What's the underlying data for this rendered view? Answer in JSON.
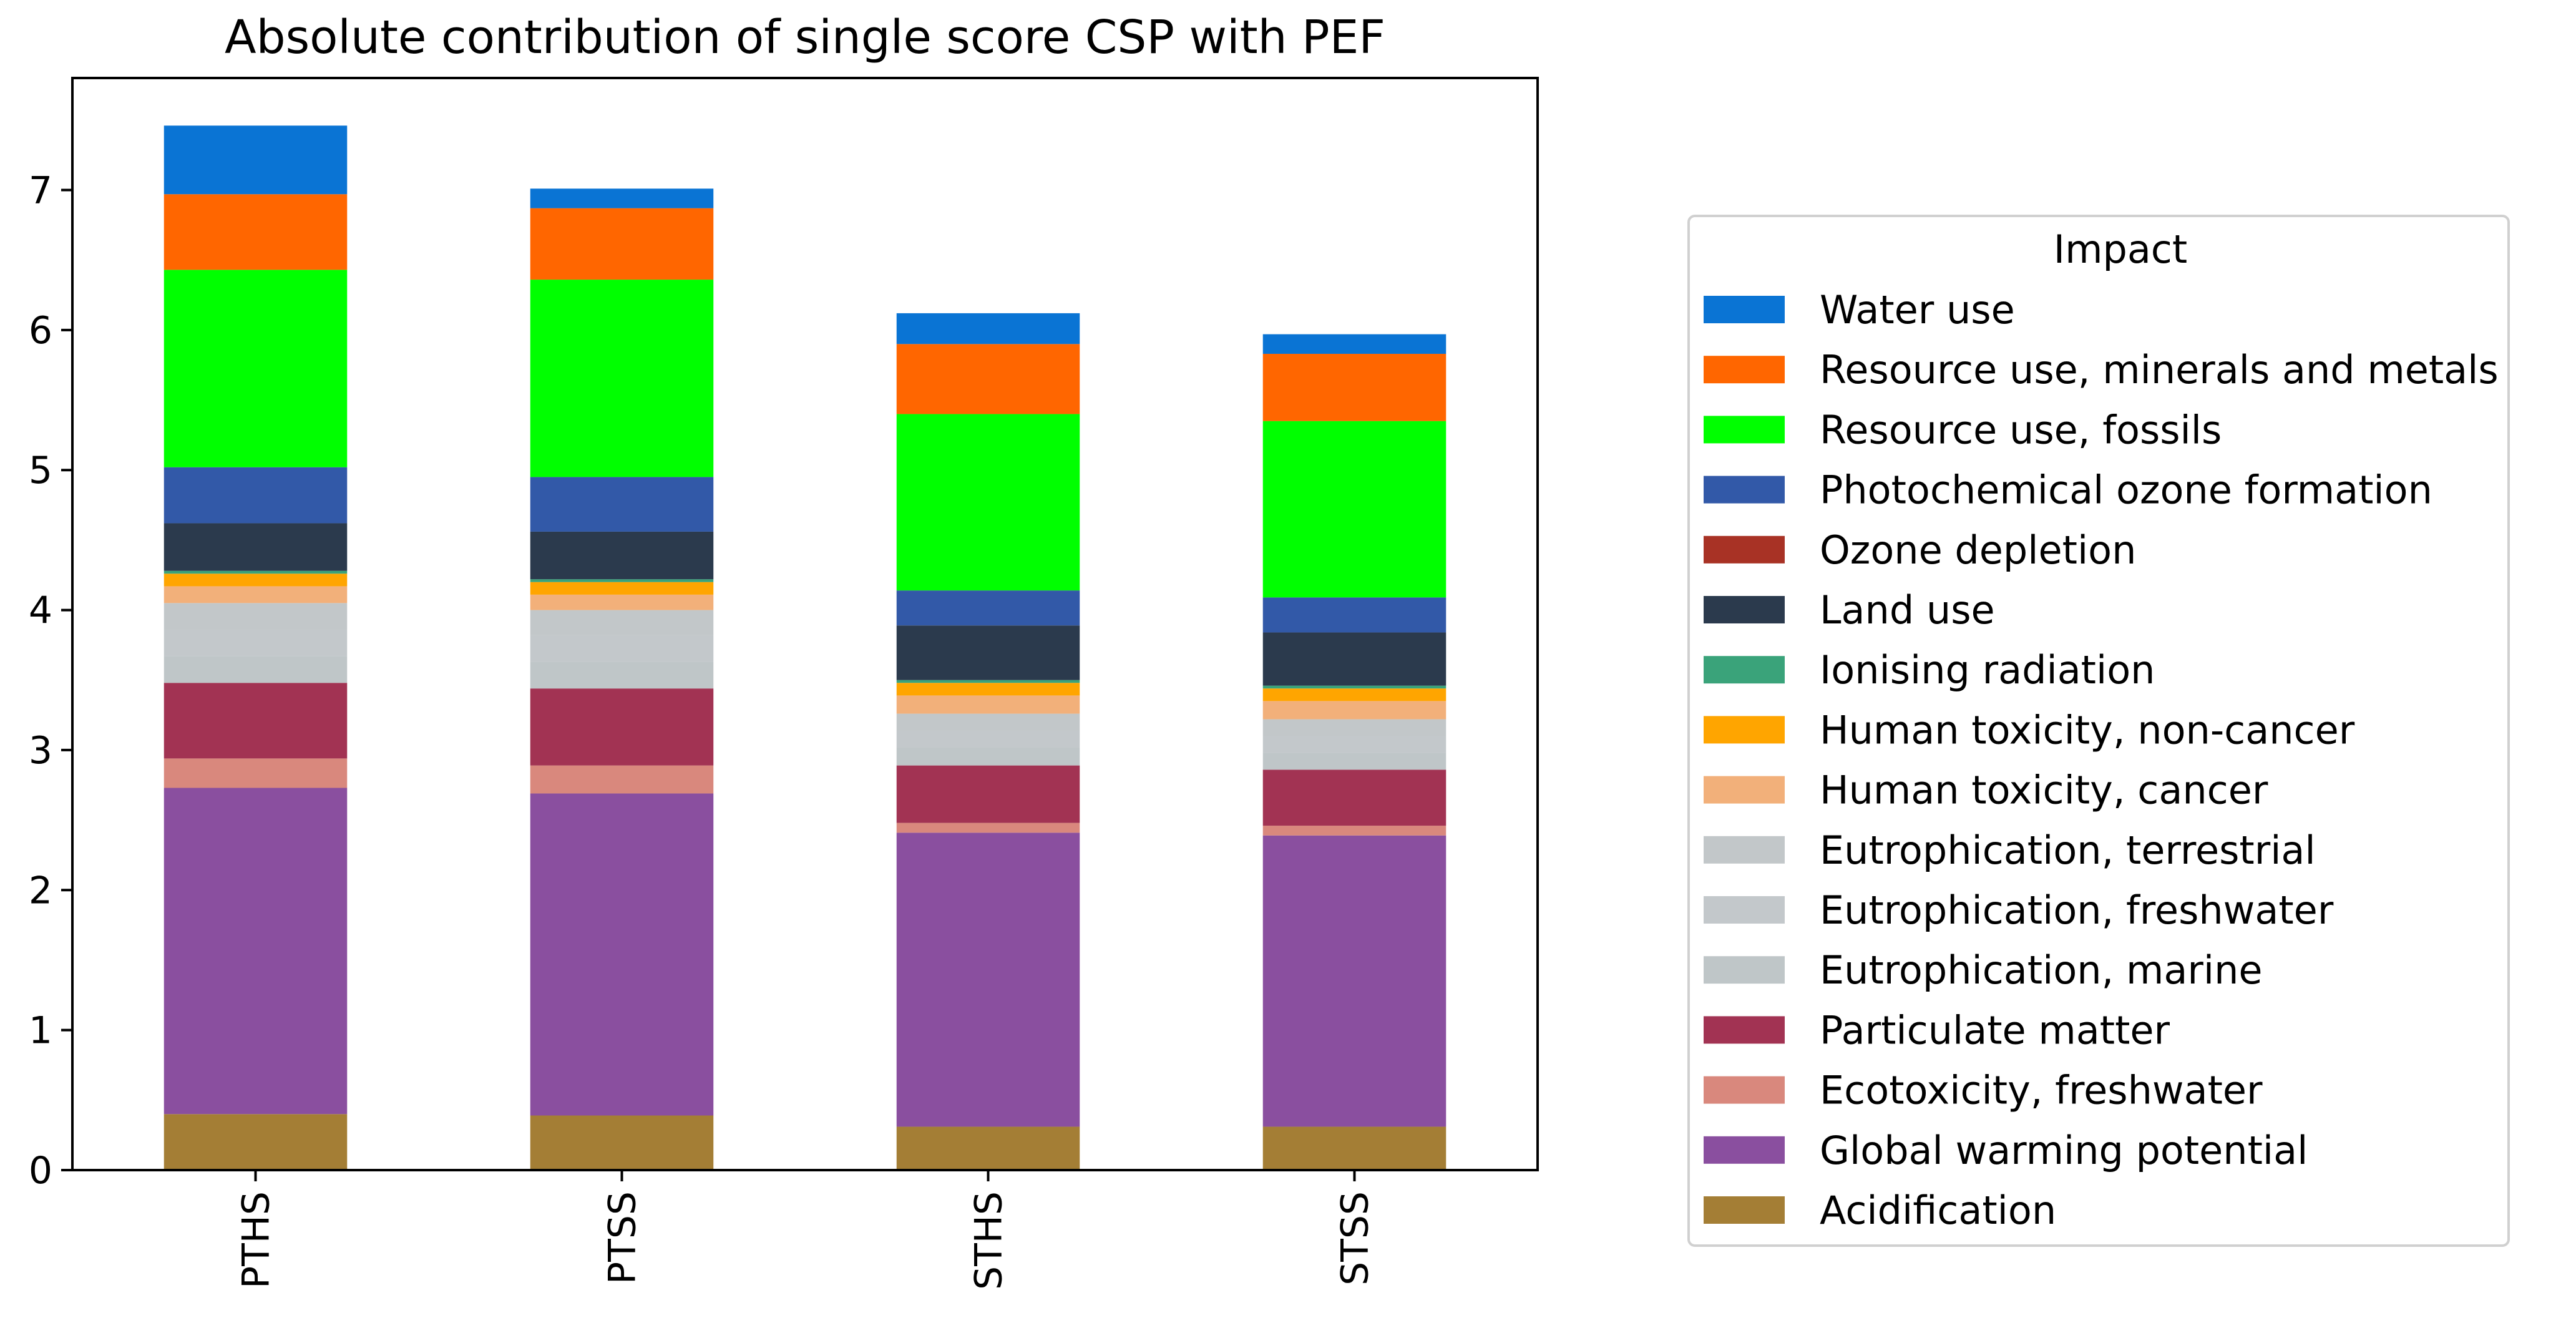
{
  "chart_data": {
    "type": "bar",
    "stacked": true,
    "title": "Absolute contribution of single score CSP with PEF",
    "xlabel": "",
    "ylabel": "",
    "ylim": [
      0,
      7.8
    ],
    "yticks": [
      0,
      1,
      2,
      3,
      4,
      5,
      6,
      7
    ],
    "categories": [
      "PTHS",
      "PTSS",
      "STHS",
      "STSS"
    ],
    "legend": {
      "title": "Impact",
      "position": "right"
    },
    "series": [
      {
        "name": "Acidification",
        "color": "#a47e35",
        "values": [
          0.4,
          0.39,
          0.31,
          0.31
        ]
      },
      {
        "name": "Global warming potential",
        "color": "#8a4f9f",
        "values": [
          2.33,
          2.3,
          2.1,
          2.08
        ]
      },
      {
        "name": "Ecotoxicity, freshwater",
        "color": "#d9887d",
        "values": [
          0.21,
          0.2,
          0.07,
          0.07
        ]
      },
      {
        "name": "Particulate matter",
        "color": "#a23353",
        "values": [
          0.54,
          0.55,
          0.41,
          0.4
        ]
      },
      {
        "name": "Eutrophication, marine",
        "color": "#bfc6c8",
        "values": [
          0.19,
          0.19,
          0.13,
          0.12
        ]
      },
      {
        "name": "Eutrophication, freshwater",
        "color": "#c3c8cb",
        "values": [
          0.19,
          0.19,
          0.12,
          0.12
        ]
      },
      {
        "name": "Eutrophication, terrestrial",
        "color": "#c2c7c9",
        "values": [
          0.19,
          0.18,
          0.12,
          0.12
        ]
      },
      {
        "name": "Human toxicity, cancer",
        "color": "#f2b07a",
        "values": [
          0.12,
          0.11,
          0.13,
          0.13
        ]
      },
      {
        "name": "Human toxicity, non-cancer",
        "color": "#ffa500",
        "values": [
          0.09,
          0.09,
          0.09,
          0.09
        ]
      },
      {
        "name": "Ionising radiation",
        "color": "#3aa37a",
        "values": [
          0.02,
          0.02,
          0.02,
          0.02
        ]
      },
      {
        "name": "Land use",
        "color": "#2b3a4d",
        "values": [
          0.34,
          0.34,
          0.39,
          0.38
        ]
      },
      {
        "name": "Ozone depletion",
        "color": "#a83225",
        "values": [
          0.0,
          0.0,
          0.0,
          0.0
        ]
      },
      {
        "name": "Photochemical ozone formation",
        "color": "#3259a8",
        "values": [
          0.4,
          0.39,
          0.25,
          0.25
        ]
      },
      {
        "name": "Resource use, fossils",
        "color": "#00ff00",
        "values": [
          1.41,
          1.41,
          1.26,
          1.26
        ]
      },
      {
        "name": "Resource use, minerals and metals",
        "color": "#ff6600",
        "values": [
          0.54,
          0.51,
          0.5,
          0.48
        ]
      },
      {
        "name": "Water use",
        "color": "#0a74d4",
        "values": [
          0.49,
          0.14,
          0.22,
          0.14
        ]
      }
    ]
  }
}
